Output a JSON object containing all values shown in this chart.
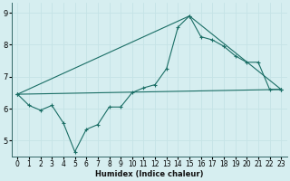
{
  "xlabel": "Humidex (Indice chaleur)",
  "bg_color": "#d6eef0",
  "grid_color": "#b8dde0",
  "line_color": "#1a6e65",
  "xlim": [
    -0.5,
    23.5
  ],
  "ylim": [
    4.5,
    9.3
  ],
  "xticks": [
    0,
    1,
    2,
    3,
    4,
    5,
    6,
    7,
    8,
    9,
    10,
    11,
    12,
    13,
    14,
    15,
    16,
    17,
    18,
    19,
    20,
    21,
    22,
    23
  ],
  "yticks": [
    5,
    6,
    7,
    8,
    9
  ],
  "line1_x": [
    0,
    1,
    2,
    3,
    4,
    5,
    6,
    7,
    8,
    9,
    10,
    11,
    12,
    13,
    14,
    15,
    16,
    17,
    18,
    19,
    20,
    21,
    22,
    23
  ],
  "line1_y": [
    6.45,
    6.1,
    5.95,
    6.1,
    5.55,
    4.65,
    5.35,
    5.5,
    6.05,
    6.05,
    6.5,
    6.65,
    6.75,
    7.25,
    8.55,
    8.9,
    8.25,
    8.15,
    7.95,
    7.65,
    7.45,
    7.45,
    6.6,
    6.6
  ],
  "line2_x": [
    0,
    23
  ],
  "line2_y": [
    6.45,
    6.6
  ],
  "line3_x": [
    0,
    15,
    23
  ],
  "line3_y": [
    6.45,
    8.9,
    6.6
  ],
  "xlabel_fontsize": 6,
  "tick_fontsize": 5.5
}
